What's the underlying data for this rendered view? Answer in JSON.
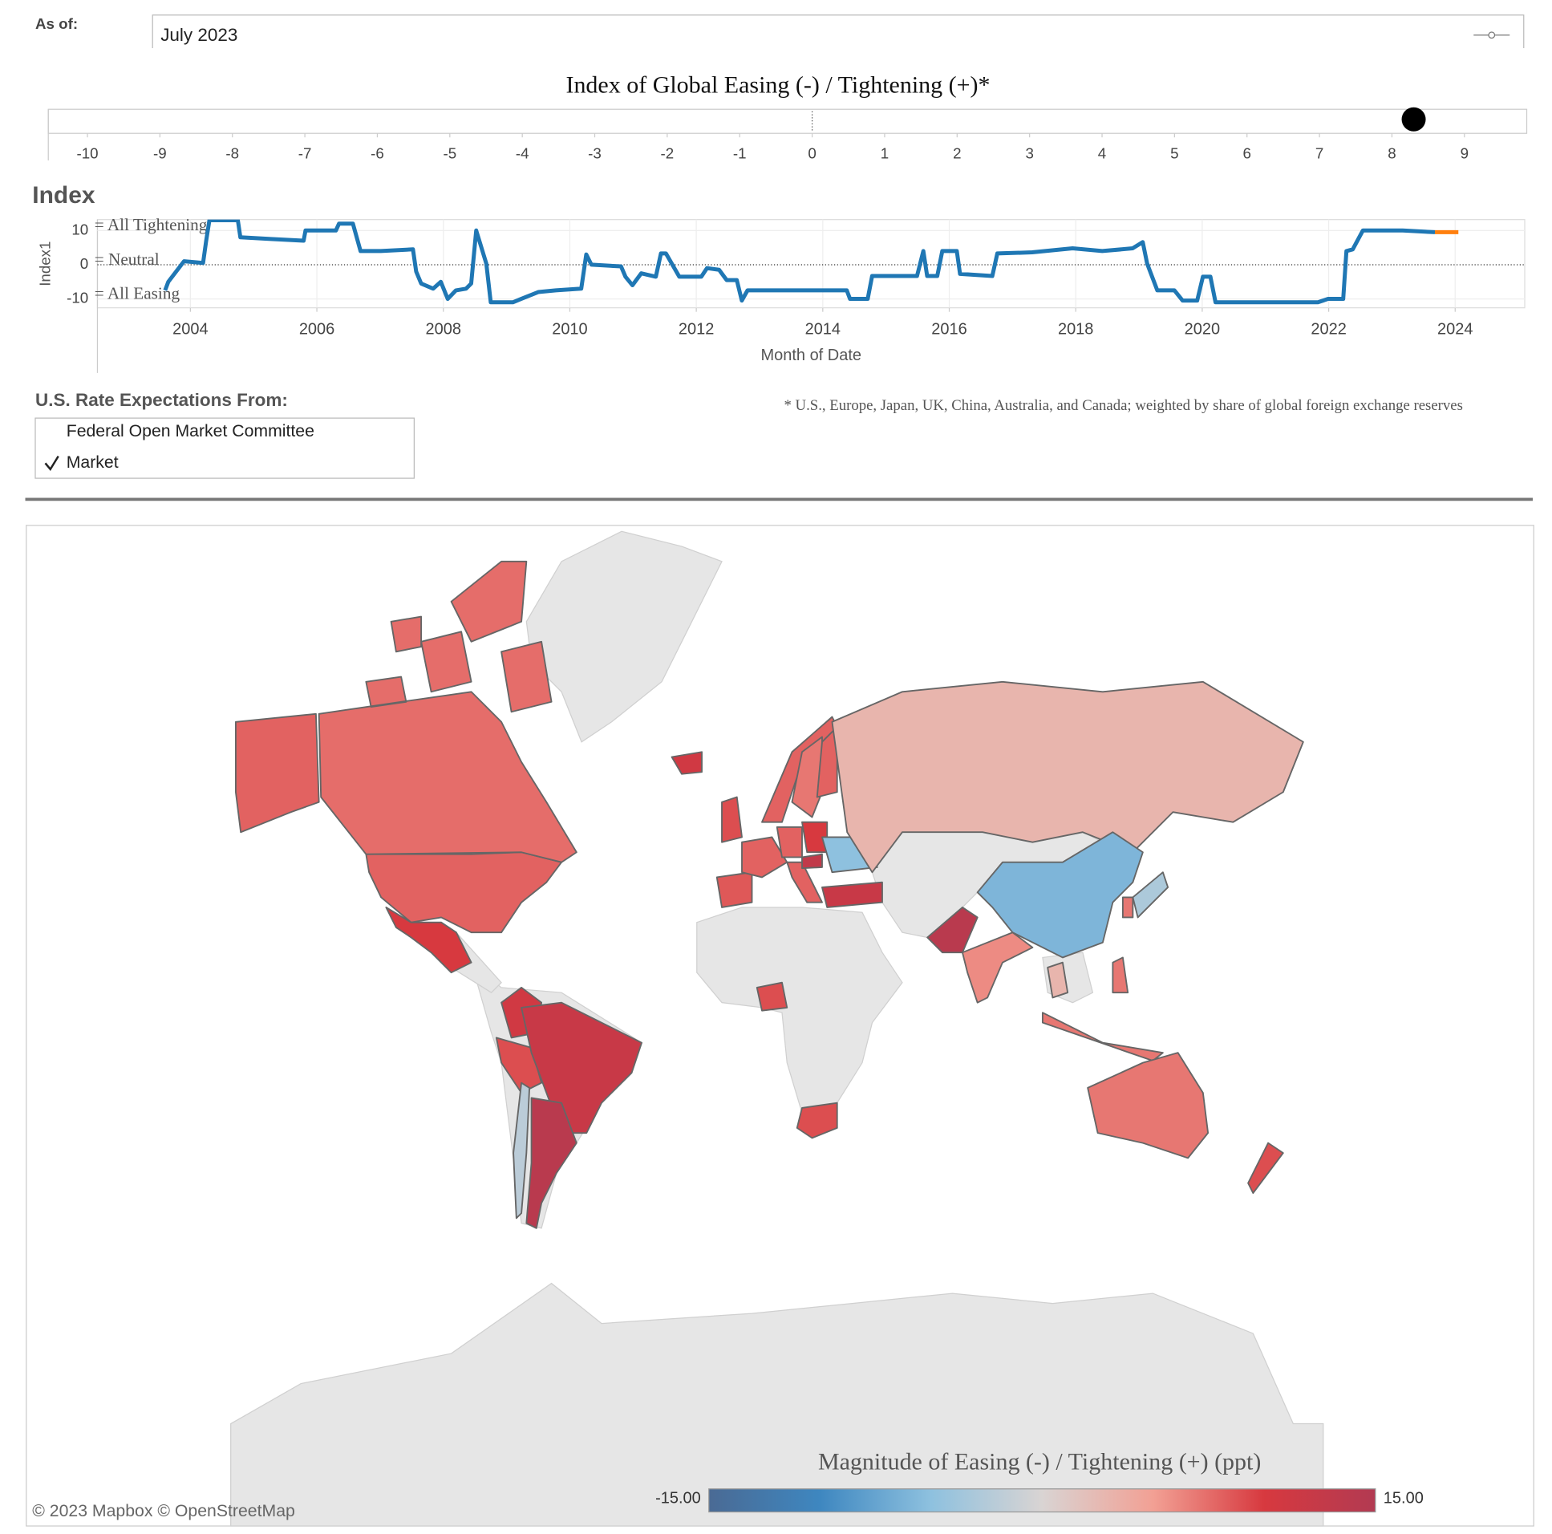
{
  "as_of": {
    "label": "As of:",
    "value": "July 2023"
  },
  "expectations": {
    "label": "U.S. Rate Expectations From:",
    "options": [
      {
        "label": "Federal Open Market Committee",
        "checked": false
      },
      {
        "label": "Market",
        "checked": true
      }
    ]
  },
  "footnote": "* U.S., Europe, Japan, UK, China, Australia, and Canada;  weighted by share of global foreign exchange reserves",
  "attribution": "© 2023 Mapbox  © OpenStreetMap",
  "chart_data": [
    {
      "type": "strip",
      "title": "Index of Global Easing (-) / Tightening (+)*",
      "value": 8.3,
      "color": "#000000",
      "xlim": [
        -10.54,
        9.86
      ],
      "xticks": [
        -10,
        -9,
        -8,
        -7,
        -6,
        -5,
        -4,
        -3,
        -2,
        -1,
        0,
        1,
        2,
        3,
        4,
        5,
        6,
        7,
        8,
        9
      ]
    },
    {
      "type": "line",
      "title": "Index",
      "y_label": "Index1",
      "x_label": "Month of Date",
      "xlim": [
        2002.53,
        2025.1
      ],
      "xticks": [
        2004,
        2006,
        2008,
        2010,
        2012,
        2014,
        2016,
        2018,
        2020,
        2022,
        2024
      ],
      "ylim": [
        -12.6,
        13.2
      ],
      "yticks": [
        10,
        0,
        -10
      ],
      "grid": true,
      "annotations": [
        {
          "y": 10,
          "text": "= All Tightening"
        },
        {
          "y": 0,
          "text": "= Neutral"
        },
        {
          "y": -10,
          "text": "= All Easing"
        }
      ],
      "series": [
        {
          "color": "#1f77b4",
          "x": [
            2003.6,
            2003.65,
            2003.9,
            2004.2,
            2004.25,
            2004.3,
            2004.75,
            2004.79,
            2005.27,
            2005.79,
            2005.82,
            2006.3,
            2006.35,
            2006.57,
            2006.69,
            2007.01,
            2007.52,
            2007.57,
            2007.65,
            2007.84,
            2007.96,
            2008.07,
            2008.2,
            2008.36,
            2008.44,
            2008.52,
            2008.68,
            2008.75,
            2009.1,
            2009.23,
            2009.5,
            2009.78,
            2010.18,
            2010.26,
            2010.34,
            2010.81,
            2010.88,
            2010.99,
            2011.13,
            2011.36,
            2011.44,
            2011.52,
            2011.73,
            2012.08,
            2012.17,
            2012.36,
            2012.48,
            2012.64,
            2012.72,
            2012.81,
            2013.83,
            2014.38,
            2014.43,
            2014.71,
            2014.78,
            2015.49,
            2015.59,
            2015.65,
            2015.81,
            2015.89,
            2016.12,
            2016.17,
            2016.68,
            2016.76,
            2017.31,
            2017.95,
            2018.42,
            2018.9,
            2019.06,
            2019.13,
            2019.29,
            2019.56,
            2019.69,
            2019.92,
            2020.01,
            2020.13,
            2020.21,
            2020.96,
            2021.83,
            2021.99,
            2022.23,
            2022.28,
            2022.38,
            2022.54,
            2022.85,
            2023.17,
            2023.68
          ],
          "values": [
            -7.5,
            -5,
            1,
            0.5,
            7,
            13,
            13,
            8,
            7.5,
            7,
            10,
            10,
            12,
            12,
            4,
            4,
            4.5,
            -2,
            -5.5,
            -7,
            -5,
            -10,
            -7.5,
            -7,
            -5.5,
            10,
            0.3,
            -11,
            -11,
            -10,
            -8,
            -7.5,
            -7,
            3,
            0,
            -0.5,
            -3.5,
            -6,
            -2.5,
            -3.5,
            3.3,
            3.3,
            -3.5,
            -3.5,
            -1,
            -1.5,
            -4.5,
            -4.5,
            -10.5,
            -7.5,
            -7.5,
            -7.5,
            -10,
            -10,
            -3.3,
            -3.3,
            4,
            -3.3,
            -3.3,
            4,
            4,
            -2.7,
            -3.3,
            3.3,
            3.6,
            4.8,
            4,
            4.8,
            6.6,
            0.3,
            -7.5,
            -7.5,
            -10.5,
            -10.5,
            -3.5,
            -3.5,
            -11,
            -11,
            -11,
            -10,
            -10,
            4,
            4.5,
            10,
            10,
            10,
            9.5
          ]
        },
        {
          "color": "#ff7f0e",
          "x": [
            2023.68,
            2024.05
          ],
          "values": [
            9.5,
            9.5
          ]
        }
      ]
    },
    {
      "type": "choropleth",
      "title": "Magnitude of Easing (-) / Tightening (+) (ppt)",
      "values": [
        8,
        7.5,
        10,
        11,
        9,
        12,
        -2,
        14,
        11,
        9,
        8,
        7,
        8,
        8.5,
        8,
        8,
        10,
        8,
        13,
        -5,
        12,
        3,
        -6,
        14,
        6,
        -3,
        7,
        3,
        7,
        7,
        7,
        9,
        9,
        9
      ],
      "clim": [
        -15,
        15
      ],
      "cticks": [
        {
          "value": -15,
          "label": "-15.00"
        },
        {
          "value": 15,
          "label": "15.00"
        }
      ],
      "colorscale": [
        "#4a6a94",
        "#3e87c0",
        "#8ec1df",
        "#d9d4d3",
        "#f2a094",
        "#d7393f",
        "#b23a52"
      ]
    }
  ]
}
